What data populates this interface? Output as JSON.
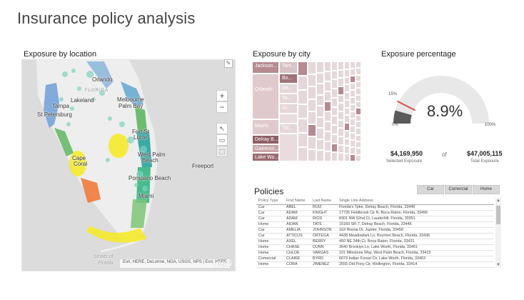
{
  "page": {
    "title": "Insurance policy analysis"
  },
  "map": {
    "title": "Exposure by location",
    "labels": [
      "Orlando",
      "FLORIDA",
      "Lakeland",
      "Melbourne",
      "Palm Bay",
      "Tampa",
      "St Petersburg",
      "Fort St",
      "Lucie",
      "Cape",
      "Coral",
      "West Palm",
      "Beach",
      "Freeport",
      "Pompano Beach",
      "Miami",
      "Straits of",
      "Florida"
    ],
    "zoom_in": "+",
    "zoom_out": "−",
    "attribution": "Esri, HERE, DeLorme, NGA, USGS, NPS | Esri, HERE",
    "logo": "esri"
  },
  "treemap": {
    "title": "Exposure by city",
    "cells": [
      "Jackson...",
      "Tam...",
      "Orlando",
      "Bo...",
      "De...",
      "Ta...",
      "Miami",
      "Gi...",
      "Delray B...",
      "Tal...",
      "Gainesvi...",
      "Lake Wo..."
    ]
  },
  "gauge": {
    "title": "Exposure percentage",
    "value_text": "8.9%",
    "value_fraction": 0.089,
    "target_fraction": 0.15,
    "target_label": "15%",
    "min_label": "0%",
    "max_label": "100%",
    "selected_value": "$4,169,950",
    "selected_caption": "Selected Exposure",
    "of_text": "of",
    "total_value": "$47,005,115",
    "total_caption": "Total Exposure",
    "colors": {
      "fill": "#5a5a5a",
      "track": "#e8e8e8",
      "target": "#d9534f"
    }
  },
  "policies": {
    "title": "Policies",
    "filters": [
      "Car",
      "Comercial",
      "Home"
    ],
    "columns": [
      "Policy Type",
      "First Name",
      "Last Name",
      "Single Line Address"
    ],
    "rows": [
      [
        "Car",
        "ABEL",
        "RUIZ",
        "Florida's Tpke, Delray Beach, Florida, 33446"
      ],
      [
        "Car",
        "ADAM",
        "KNIGHT",
        "17735 Fieldbrook Cir N, Boca Raton, Florida, 33496"
      ],
      [
        "Car",
        "ADAM",
        "RIOS",
        "8301 NW 52nd Ct, Lauderhill, Florida, 33351"
      ],
      [
        "Home",
        "AIDAN",
        "TATE",
        "15160 SR-7, Delray Beach, Florida, 33446"
      ],
      [
        "Car",
        "AMELIA",
        "JOHNSON",
        "163 Rivinia Dr, Jupiter, Florida, 33458"
      ],
      [
        "Car",
        "ATTICUS",
        "ORTEGA",
        "4438 Meadowlark Ln, Boynton Beach, Florida, 33436"
      ],
      [
        "Home",
        "AXEL",
        "BERRY",
        "450 NE 24th Ct, Boca Raton, Florida, 33431"
      ],
      [
        "Home",
        "CHASE",
        "DUNN",
        "3640 Brooklyn Ln, Lake Worth, Florida, 33461"
      ],
      [
        "Home",
        "CHLOE",
        "VARGAS",
        "101 Milestone Way, West Palm Beach, Florida, 33415"
      ],
      [
        "Comercial",
        "CLAIRE",
        "BYRD",
        "6073 Indian Forest Cir, Lake Worth, Florida, 33463"
      ],
      [
        "Home",
        "CORA",
        "JIMENEZ",
        "2655 Old Pony Cir, Wellington, Florida, 33414"
      ]
    ]
  }
}
